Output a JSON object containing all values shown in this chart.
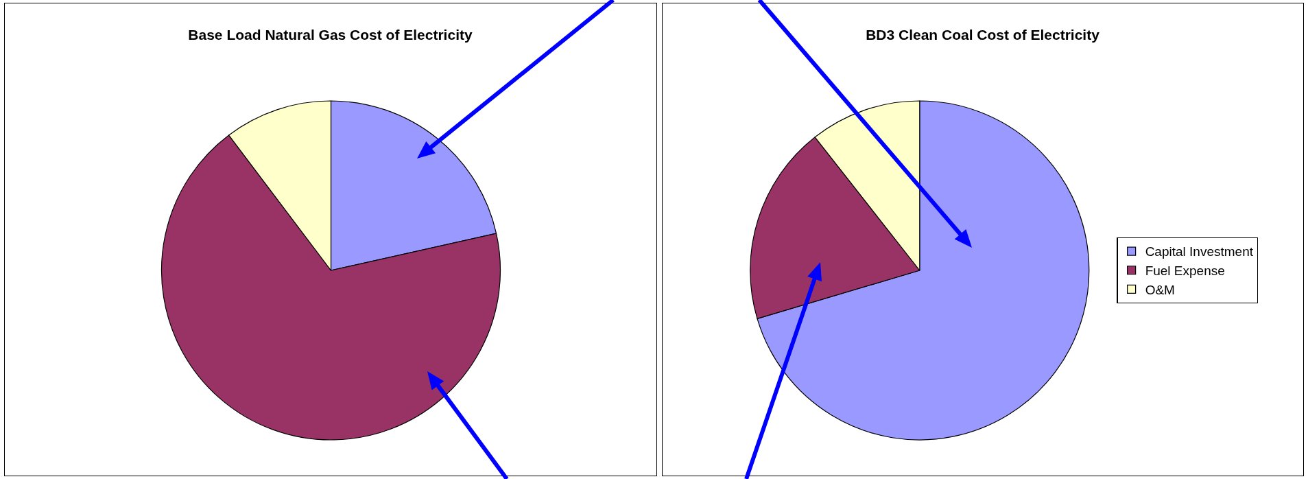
{
  "chart_data": [
    {
      "type": "pie",
      "title": "Base Load Natural Gas Cost of Electricity",
      "categories": [
        null,
        null,
        null
      ],
      "values": [
        21.5,
        68.2,
        10.3
      ],
      "colors": [
        "#9999ff",
        "#993366",
        "#ffffcc"
      ],
      "legend": false
    },
    {
      "type": "pie",
      "title": "BD3 Clean Coal Cost of Electricity",
      "categories": [
        "Capital Investment",
        "Fuel Expense",
        "O&M"
      ],
      "values": [
        70.4,
        19,
        10.6
      ],
      "colors": [
        "#9999ff",
        "#993366",
        "#ffffcc"
      ],
      "legend": "right"
    }
  ]
}
